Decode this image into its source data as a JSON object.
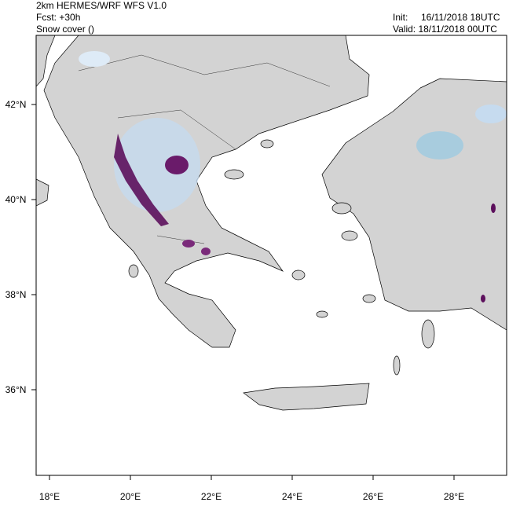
{
  "header": {
    "title": "2km HERMES/WRF WFS V1.0",
    "forecast": "Fcst: +30h",
    "field": "Snow cover ()",
    "init_label": "Init:",
    "init_time": "16/11/2018 18UTC",
    "valid": "Valid: 18/11/2018 00UTC"
  },
  "map": {
    "lat_ticks": [
      {
        "value": 42,
        "label": "42°N"
      },
      {
        "value": 40,
        "label": "40°N"
      },
      {
        "value": 38,
        "label": "38°N"
      },
      {
        "value": 36,
        "label": "36°N"
      }
    ],
    "lon_ticks": [
      {
        "value": 18,
        "label": "18°E"
      },
      {
        "value": 20,
        "label": "20°E"
      },
      {
        "value": 22,
        "label": "22°E"
      },
      {
        "value": 24,
        "label": "24°E"
      },
      {
        "value": 26,
        "label": "26°E"
      },
      {
        "value": 28,
        "label": "28°E"
      }
    ]
  }
}
